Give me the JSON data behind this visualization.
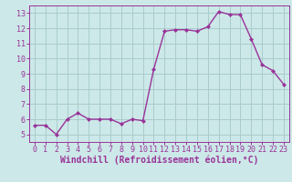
{
  "x": [
    0,
    1,
    2,
    3,
    4,
    5,
    6,
    7,
    8,
    9,
    10,
    11,
    12,
    13,
    14,
    15,
    16,
    17,
    18,
    19,
    20,
    21,
    22,
    23
  ],
  "y": [
    5.6,
    5.6,
    5.0,
    6.0,
    6.4,
    6.0,
    6.0,
    6.0,
    5.7,
    6.0,
    5.9,
    9.3,
    11.8,
    11.9,
    11.9,
    11.8,
    12.1,
    13.1,
    12.9,
    12.9,
    11.3,
    9.6,
    9.2,
    8.3
  ],
  "line_color": "#993399",
  "marker": "D",
  "marker_size": 2,
  "bg_color": "#cce8e8",
  "grid_color": "#aacccc",
  "xlabel": "Windchill (Refroidissement éolien,°C)",
  "xlabel_color": "#993399",
  "tick_color": "#993399",
  "ylim": [
    4.5,
    13.5
  ],
  "xlim": [
    -0.5,
    23.5
  ],
  "yticks": [
    5,
    6,
    7,
    8,
    9,
    10,
    11,
    12,
    13
  ],
  "xticks": [
    0,
    1,
    2,
    3,
    4,
    5,
    6,
    7,
    8,
    9,
    10,
    11,
    12,
    13,
    14,
    15,
    16,
    17,
    18,
    19,
    20,
    21,
    22,
    23
  ],
  "tick_fontsize": 6,
  "xlabel_fontsize": 7,
  "line_width": 1.0
}
